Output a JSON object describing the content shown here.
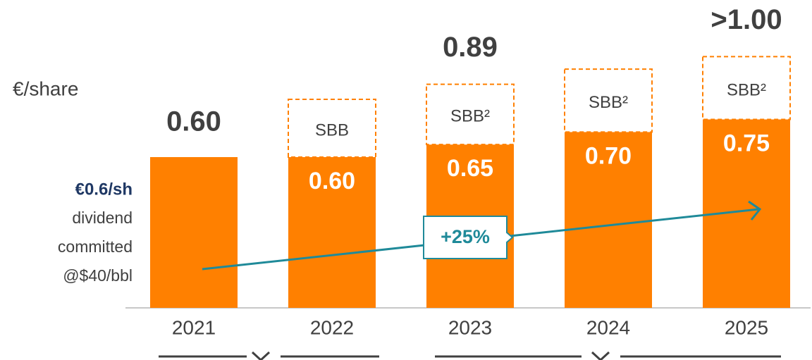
{
  "chart_data": {
    "type": "stacked-bar",
    "unit_label": "€/share",
    "categories": [
      "2021",
      "2022",
      "2023",
      "2024",
      "2025"
    ],
    "series": [
      {
        "color": "#ff8000",
        "values": [
          0.6,
          0.6,
          0.65,
          0.7,
          0.75
        ],
        "value_labels": [
          "0.60",
          "0.60",
          "0.65",
          "0.70",
          "0.75"
        ]
      },
      {
        "color": "#ff8000",
        "dashed": true,
        "values": [
          null,
          0.23,
          0.24,
          0.25,
          0.25
        ],
        "value_labels": [
          null,
          "SBB",
          "SBB²",
          "SBB²",
          "SBB²"
        ]
      }
    ],
    "total_labels": [
      null,
      null,
      "0.89",
      null,
      ">1.00"
    ],
    "ylim": [
      0,
      1.2
    ],
    "side_note": {
      "highlight": "€0.6/sh",
      "lines": [
        "dividend",
        "committed",
        "@$40/bbl"
      ]
    },
    "trend_label": "+25%"
  }
}
